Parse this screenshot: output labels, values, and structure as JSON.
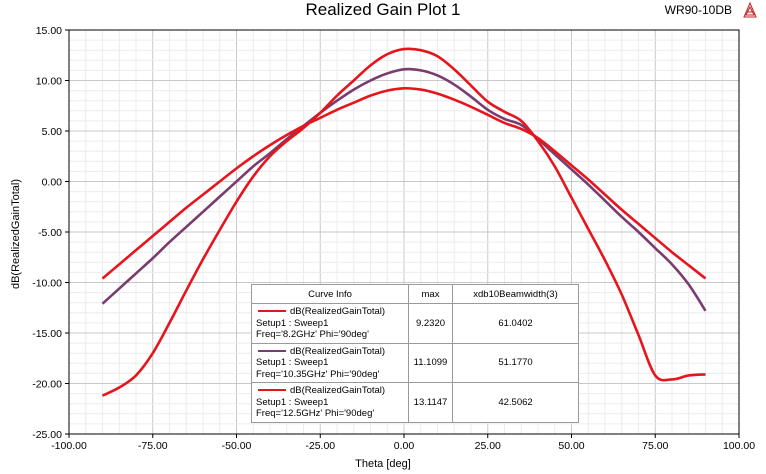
{
  "header": {
    "title": "Realized Gain Plot 1",
    "design_name": "WR90-10DB"
  },
  "chart_data": {
    "type": "line",
    "title": "Realized Gain Plot 1",
    "xlabel": "Theta [deg]",
    "ylabel": "dB(RealizedGainTotal)",
    "xlim": [
      -100,
      100
    ],
    "ylim": [
      -25,
      15
    ],
    "grid": true,
    "legend_position": "bottom-center",
    "x_ticks": [
      "-100.00",
      "-75.00",
      "-50.00",
      "-25.00",
      "0.00",
      "25.00",
      "50.00",
      "75.00",
      "100.00"
    ],
    "y_ticks": [
      "15.00",
      "10.00",
      "5.00",
      "0.00",
      "-5.00",
      "-10.00",
      "-15.00",
      "-20.00",
      "-25.00"
    ],
    "x": [
      -90,
      -85,
      -80,
      -75,
      -70,
      -65,
      -60,
      -55,
      -50,
      -45,
      -40,
      -35,
      -30,
      -25,
      -20,
      -15,
      -10,
      -5,
      0,
      5,
      10,
      15,
      20,
      25,
      30,
      35,
      40,
      45,
      50,
      55,
      60,
      65,
      70,
      75,
      80,
      85,
      90
    ],
    "series": [
      {
        "name": "dB(RealizedGainTotal) Setup1 : Sweep1 Freq='8.2GHz' Phi='90deg'",
        "color": "#e8141c",
        "values": [
          -9.6,
          -8.2,
          -6.8,
          -5.4,
          -4.0,
          -2.6,
          -1.3,
          0.0,
          1.3,
          2.5,
          3.6,
          4.6,
          5.5,
          6.3,
          7.1,
          7.8,
          8.5,
          9.0,
          9.23,
          9.1,
          8.7,
          8.1,
          7.4,
          6.6,
          5.8,
          5.2,
          4.3,
          3.0,
          1.6,
          0.2,
          -1.3,
          -2.8,
          -4.2,
          -5.6,
          -7.0,
          -8.3,
          -9.6
        ]
      },
      {
        "name": "dB(RealizedGainTotal) Setup1 : Sweep1 Freq='10.35GHz' Phi='90deg'",
        "color": "#7a3b6e",
        "values": [
          -12.1,
          -10.6,
          -9.1,
          -7.6,
          -6.0,
          -4.5,
          -3.0,
          -1.5,
          0.0,
          1.5,
          2.8,
          4.2,
          5.5,
          6.8,
          8.0,
          9.1,
          10.0,
          10.7,
          11.11,
          11.0,
          10.5,
          9.6,
          8.4,
          7.1,
          6.2,
          5.6,
          4.2,
          2.7,
          1.2,
          -0.3,
          -1.9,
          -3.5,
          -5.0,
          -6.6,
          -8.2,
          -10.2,
          -12.8
        ]
      },
      {
        "name": "dB(RealizedGainTotal) Setup1 : Sweep1 Freq='12.5GHz' Phi='90deg'",
        "color": "#e8141c",
        "values": [
          -21.2,
          -20.4,
          -19.2,
          -17.0,
          -14.0,
          -10.8,
          -7.7,
          -4.8,
          -2.0,
          0.5,
          2.5,
          4.0,
          5.3,
          6.8,
          8.5,
          10.0,
          11.5,
          12.6,
          13.11,
          13.0,
          12.4,
          11.1,
          9.5,
          7.9,
          6.9,
          6.0,
          4.0,
          1.5,
          -1.6,
          -4.7,
          -7.8,
          -11.2,
          -15.2,
          -19.2,
          -19.6,
          -19.2,
          -19.1
        ]
      }
    ]
  },
  "legend": {
    "header": {
      "curve_info": "Curve Info",
      "max": "max",
      "beamwidth": "xdb10Beamwidth(3)"
    },
    "rows": [
      {
        "line1": "dB(RealizedGainTotal)",
        "line2": "Setup1 : Sweep1",
        "line3": "Freq='8.2GHz' Phi='90deg'",
        "max": "9.2320",
        "beamwidth": "61.0402",
        "color": "#e8141c"
      },
      {
        "line1": "dB(RealizedGainTotal)",
        "line2": "Setup1 : Sweep1",
        "line3": "Freq='10.35GHz' Phi='90deg'",
        "max": "11.1099",
        "beamwidth": "51.1770",
        "color": "#7a3b6e"
      },
      {
        "line1": "dB(RealizedGainTotal)",
        "line2": "Setup1 : Sweep1",
        "line3": "Freq='12.5GHz' Phi='90deg'",
        "max": "13.1147",
        "beamwidth": "42.5062",
        "color": "#e8141c"
      }
    ]
  }
}
